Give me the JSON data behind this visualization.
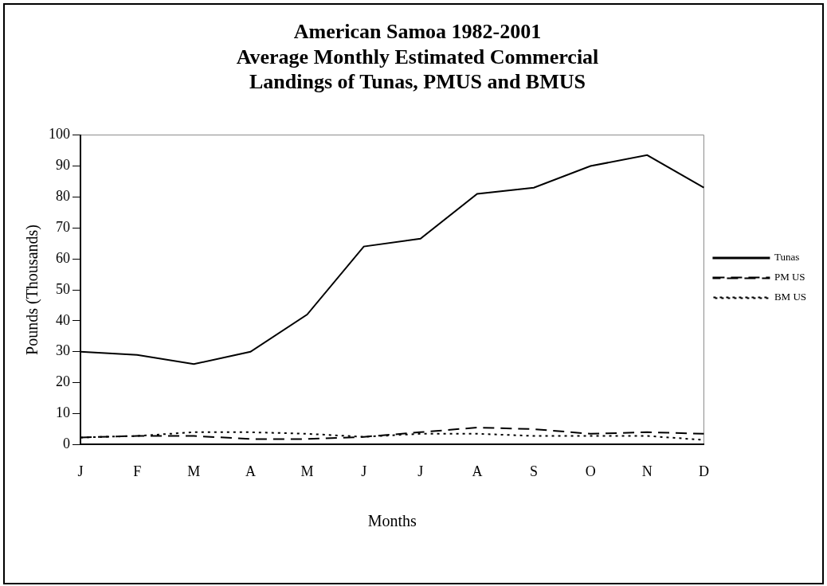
{
  "chart_data": {
    "type": "line",
    "title": [
      "American Samoa 1982-2001",
      "Average Monthly Estimated Commercial",
      "Landings of Tunas, PMUS and BMUS"
    ],
    "xlabel": "Months",
    "ylabel": "Pounds (Thousands)",
    "categories": [
      "J",
      "F",
      "M",
      "A",
      "M",
      "J",
      "J",
      "A",
      "S",
      "O",
      "N",
      "D"
    ],
    "series": [
      {
        "name": "Tunas",
        "color": "#000000",
        "line_style": "solid",
        "values": [
          30,
          29,
          26,
          30,
          42,
          64,
          66.5,
          81,
          83,
          90,
          93.5,
          83
        ]
      },
      {
        "name": "PM US",
        "color": "#000000",
        "line_style": "dashed",
        "values": [
          2.3,
          2.8,
          2.8,
          1.8,
          1.8,
          2.5,
          4,
          5.5,
          5,
          3.5,
          4,
          3.5
        ]
      },
      {
        "name": "BM US",
        "color": "#000000",
        "line_style": "dotted",
        "values": [
          2.3,
          2.8,
          4,
          4,
          3.5,
          2.5,
          3.5,
          3.5,
          2.8,
          2.8,
          2.8,
          1.5
        ]
      }
    ],
    "ylim": [
      0,
      100
    ],
    "yticks": [
      0,
      10,
      20,
      30,
      40,
      50,
      60,
      70,
      80,
      90,
      100
    ],
    "grid": false,
    "legend": "right",
    "marker": "none"
  }
}
